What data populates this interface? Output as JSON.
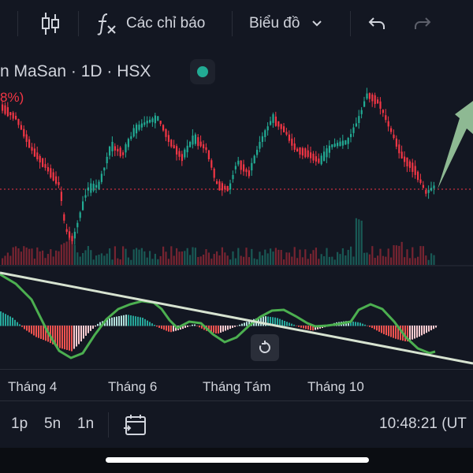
{
  "toolbar": {
    "indicators_label": "Các chỉ báo",
    "chart_type_label": "Biểu đồ"
  },
  "legend": {
    "title": "n MaSan · 1D · HSX",
    "change": "8%)"
  },
  "xaxis": {
    "labels": [
      "Tháng 4",
      "Tháng 6",
      "Tháng Tám",
      "Tháng 10"
    ]
  },
  "bottombar": {
    "ranges": [
      "1p",
      "5n",
      "1n"
    ],
    "time": "10:48:21 (UT"
  },
  "colors": {
    "up": "#22ab94",
    "down": "#f23645",
    "background": "#131722",
    "trendline": "#d7e3d1",
    "signal_line": "#4caf50"
  }
}
